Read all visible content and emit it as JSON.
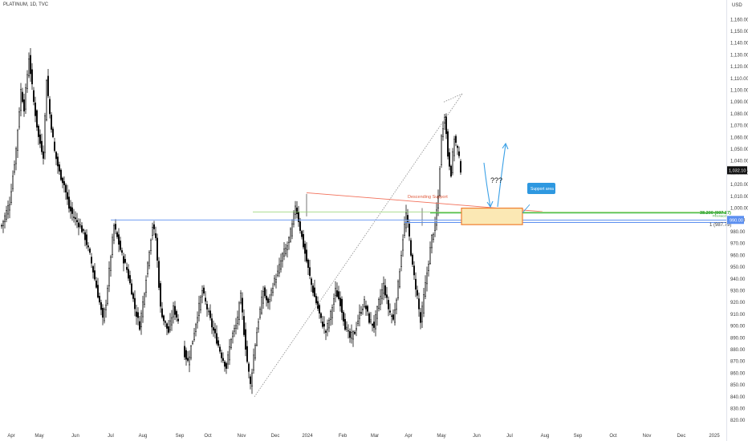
{
  "header": {
    "symbol": "PLATINUM, 1D, TVC",
    "currency": "USD"
  },
  "chart_data": {
    "type": "candlestick",
    "x_tick_labels": [
      "Apr",
      "May",
      "Jun",
      "Jul",
      "Aug",
      "Sep",
      "Oct",
      "Nov",
      "Dec",
      "2024",
      "Feb",
      "Mar",
      "Apr",
      "May",
      "Jun",
      "Jul",
      "Aug",
      "Sep",
      "Oct",
      "Nov",
      "Dec",
      "2025"
    ],
    "y_tick_labels": [
      820,
      830,
      840,
      850,
      860,
      870,
      880,
      890,
      900,
      910,
      920,
      930,
      940,
      950,
      960,
      970,
      980,
      990,
      1000,
      1010,
      1020,
      1030,
      1040,
      1050,
      1060,
      1070,
      1080,
      1090,
      1100,
      1110,
      1120,
      1130,
      1140,
      1150,
      1160
    ],
    "ylim": [
      812,
      1167
    ],
    "current_price": "1,032.10",
    "level_labels": {
      "fib_level": "38.200 (997.17)",
      "fib_note": "Fibonacci",
      "level_990": "990.00",
      "level_1": "1 (987.79)"
    },
    "annotations": {
      "descending_support": "Descending Support",
      "question": "???",
      "support_area": "Support area"
    },
    "anchors": [
      [
        0,
        985
      ],
      [
        5,
        1005
      ],
      [
        9,
        1050
      ],
      [
        12,
        1100
      ],
      [
        14,
        1085
      ],
      [
        17,
        1128
      ],
      [
        20,
        1090
      ],
      [
        23,
        1060
      ],
      [
        26,
        1045
      ],
      [
        28,
        1110
      ],
      [
        30,
        1080
      ],
      [
        33,
        1048
      ],
      [
        36,
        1030
      ],
      [
        39,
        1020
      ],
      [
        42,
        1000
      ],
      [
        46,
        990
      ],
      [
        49,
        985
      ],
      [
        52,
        975
      ],
      [
        55,
        960
      ],
      [
        58,
        940
      ],
      [
        61,
        920
      ],
      [
        63,
        905
      ],
      [
        65,
        920
      ],
      [
        68,
        960
      ],
      [
        70,
        985
      ],
      [
        72,
        975
      ],
      [
        75,
        960
      ],
      [
        78,
        948
      ],
      [
        81,
        930
      ],
      [
        83,
        915
      ],
      [
        86,
        900
      ],
      [
        89,
        930
      ],
      [
        92,
        965
      ],
      [
        94,
        985
      ],
      [
        96,
        975
      ],
      [
        99,
        915
      ],
      [
        101,
        905
      ],
      [
        104,
        895
      ],
      [
        107,
        915
      ],
      [
        110,
        905
      ],
      [
        113,
        880
      ],
      [
        116,
        870
      ],
      [
        119,
        888
      ],
      [
        122,
        910
      ],
      [
        125,
        930
      ],
      [
        128,
        915
      ],
      [
        131,
        900
      ],
      [
        134,
        888
      ],
      [
        137,
        875
      ],
      [
        140,
        865
      ],
      [
        143,
        890
      ],
      [
        146,
        900
      ],
      [
        149,
        925
      ],
      [
        151,
        895
      ],
      [
        153,
        870
      ],
      [
        155,
        850
      ],
      [
        157,
        875
      ],
      [
        160,
        905
      ],
      [
        163,
        930
      ],
      [
        166,
        918
      ],
      [
        169,
        935
      ],
      [
        172,
        945
      ],
      [
        175,
        960
      ],
      [
        178,
        968
      ],
      [
        181,
        985
      ],
      [
        183,
        1003
      ],
      [
        185,
        990
      ],
      [
        187,
        975
      ],
      [
        190,
        955
      ],
      [
        193,
        935
      ],
      [
        196,
        920
      ],
      [
        199,
        905
      ],
      [
        202,
        895
      ],
      [
        205,
        910
      ],
      [
        208,
        930
      ],
      [
        211,
        920
      ],
      [
        214,
        900
      ],
      [
        217,
        890
      ],
      [
        220,
        895
      ],
      [
        223,
        910
      ],
      [
        226,
        920
      ],
      [
        229,
        905
      ],
      [
        232,
        900
      ],
      [
        235,
        920
      ],
      [
        238,
        935
      ],
      [
        241,
        915
      ],
      [
        244,
        905
      ],
      [
        247,
        935
      ],
      [
        250,
        975
      ],
      [
        252,
        995
      ],
      [
        254,
        975
      ],
      [
        256,
        950
      ],
      [
        259,
        925
      ],
      [
        261,
        903
      ],
      [
        263,
        925
      ],
      [
        266,
        955
      ],
      [
        268,
        975
      ],
      [
        270,
        985
      ],
      [
        272,
        1010
      ],
      [
        274,
        1060
      ],
      [
        276,
        1080
      ],
      [
        278,
        1045
      ],
      [
        280,
        1030
      ],
      [
        282,
        1060
      ],
      [
        284,
        1050
      ],
      [
        286,
        1033
      ]
    ]
  }
}
